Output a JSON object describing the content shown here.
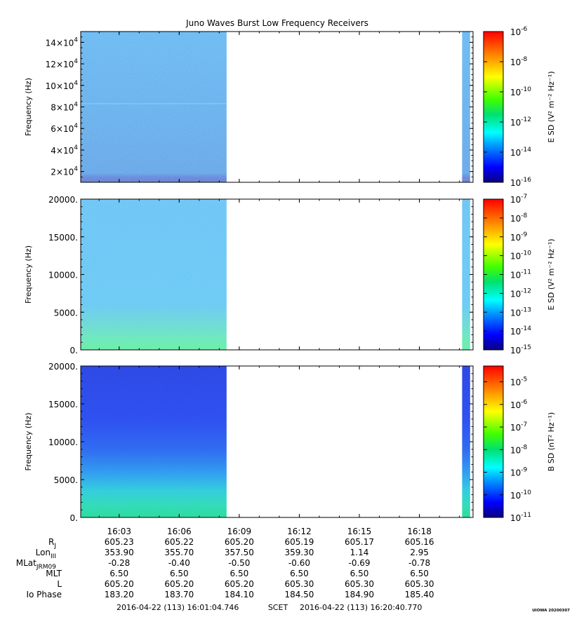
{
  "chart_data": {
    "type": "heatmap",
    "title": "Juno Waves Burst Low Frequency Receivers",
    "credit": "UIOWA 20200307",
    "x_axis": {
      "ticks": [
        "16:03",
        "16:06",
        "16:09",
        "16:12",
        "16:15",
        "16:18"
      ],
      "time_range": [
        "16:01:04.746",
        "16:20:40.770"
      ],
      "footer": {
        "start": "2016-04-22 (113) 16:01:04.746",
        "mid": "SCET",
        "end": "2016-04-22 (113) 16:20:40.770"
      }
    },
    "panels": [
      {
        "ylabel": "Frequency (Hz)",
        "ylim": [
          10000,
          150000
        ],
        "yticks": [
          {
            "mant": "14×10",
            "exp": "4",
            "v": 140000
          },
          {
            "mant": "12×10",
            "exp": "4",
            "v": 120000
          },
          {
            "mant": "10×10",
            "exp": "4",
            "v": 100000
          },
          {
            "mant": "8×10",
            "exp": "4",
            "v": 80000
          },
          {
            "mant": "6×10",
            "exp": "4",
            "v": 60000
          },
          {
            "mant": "4×10",
            "exp": "4",
            "v": 40000
          },
          {
            "mant": "2×10",
            "exp": "4",
            "v": 20000
          }
        ],
        "colorbar": {
          "label": "E SD (V² m⁻² Hz⁻¹)",
          "log_range": [
            -16,
            -6
          ],
          "ticks": [
            {
              "base": "10",
              "exp": "-6",
              "v": -6
            },
            {
              "base": "10",
              "exp": "-8",
              "v": -8
            },
            {
              "base": "10",
              "exp": "-10",
              "v": -10
            },
            {
              "base": "10",
              "exp": "-12",
              "v": -12
            },
            {
              "base": "10",
              "exp": "-14",
              "v": -14
            },
            {
              "base": "10",
              "exp": "-16",
              "v": -16
            }
          ]
        },
        "data_segments": [
          {
            "start": "16:01:04.746",
            "end": "16:08:22",
            "level": -13.6
          },
          {
            "start": "16:20:08",
            "end": "16:20:32",
            "level": -13.3
          }
        ]
      },
      {
        "ylabel": "Frequency (Hz)",
        "ylim": [
          0,
          20000
        ],
        "yticks": [
          {
            "label": "20000.",
            "v": 20000
          },
          {
            "label": "15000.",
            "v": 15000
          },
          {
            "label": "10000.",
            "v": 10000
          },
          {
            "label": "5000.",
            "v": 5000
          },
          {
            "label": "0.",
            "v": 0
          }
        ],
        "colorbar": {
          "label": "E SD (V² m⁻² Hz⁻¹)",
          "log_range": [
            -15,
            -7
          ],
          "ticks": [
            {
              "base": "10",
              "exp": "-7",
              "v": -7
            },
            {
              "base": "10",
              "exp": "-8",
              "v": -8
            },
            {
              "base": "10",
              "exp": "-9",
              "v": -9
            },
            {
              "base": "10",
              "exp": "-10",
              "v": -10
            },
            {
              "base": "10",
              "exp": "-11",
              "v": -11
            },
            {
              "base": "10",
              "exp": "-12",
              "v": -12
            },
            {
              "base": "10",
              "exp": "-13",
              "v": -13
            },
            {
              "base": "10",
              "exp": "-14",
              "v": -14
            },
            {
              "base": "10",
              "exp": "-15",
              "v": -15
            }
          ]
        },
        "data_segments": [
          {
            "start": "16:01:04.746",
            "end": "16:08:22",
            "level": -13.3
          },
          {
            "start": "16:20:08",
            "end": "16:20:32",
            "level": -13.1
          }
        ]
      },
      {
        "ylabel": "Frequency (Hz)",
        "ylim": [
          0,
          20000
        ],
        "yticks": [
          {
            "label": "20000.",
            "v": 20000
          },
          {
            "label": "15000.",
            "v": 15000
          },
          {
            "label": "10000.",
            "v": 10000
          },
          {
            "label": "5000.",
            "v": 5000
          },
          {
            "label": "0.",
            "v": 0
          }
        ],
        "colorbar": {
          "label": "B SD (nT² Hz⁻¹)",
          "log_range": [
            -11,
            -4.3
          ],
          "ticks": [
            {
              "base": "10",
              "exp": "-5",
              "v": -5
            },
            {
              "base": "10",
              "exp": "-6",
              "v": -6
            },
            {
              "base": "10",
              "exp": "-7",
              "v": -7
            },
            {
              "base": "10",
              "exp": "-8",
              "v": -8
            },
            {
              "base": "10",
              "exp": "-9",
              "v": -9
            },
            {
              "base": "10",
              "exp": "-10",
              "v": -10
            },
            {
              "base": "10",
              "exp": "-11",
              "v": -11
            }
          ]
        },
        "data_segments": [
          {
            "start": "16:01:04.746",
            "end": "16:08:22",
            "level": -10.5
          },
          {
            "start": "16:20:08",
            "end": "16:20:32",
            "level": -10.6
          }
        ]
      }
    ],
    "ephemeris": {
      "rows": [
        {
          "label": "R",
          "sub": "J",
          "values": [
            "605.23",
            "605.22",
            "605.20",
            "605.19",
            "605.17",
            "605.16"
          ]
        },
        {
          "label": "Lon",
          "sub": "III",
          "values": [
            "353.90",
            "355.70",
            "357.50",
            "359.30",
            "1.14",
            "2.95"
          ]
        },
        {
          "label": "MLat",
          "sub": "JRM09",
          "values": [
            "-0.28",
            "-0.40",
            "-0.50",
            "-0.60",
            "-0.69",
            "-0.78"
          ]
        },
        {
          "label": "MLT",
          "sub": "",
          "values": [
            "6.50",
            "6.50",
            "6.50",
            "6.50",
            "6.50",
            "6.50"
          ]
        },
        {
          "label": "L",
          "sub": "",
          "values": [
            "605.20",
            "605.20",
            "605.20",
            "605.30",
            "605.30",
            "605.30"
          ]
        },
        {
          "label": "Io Phase",
          "sub": "",
          "values": [
            "183.20",
            "183.70",
            "184.10",
            "184.50",
            "184.90",
            "185.40"
          ]
        }
      ]
    }
  }
}
